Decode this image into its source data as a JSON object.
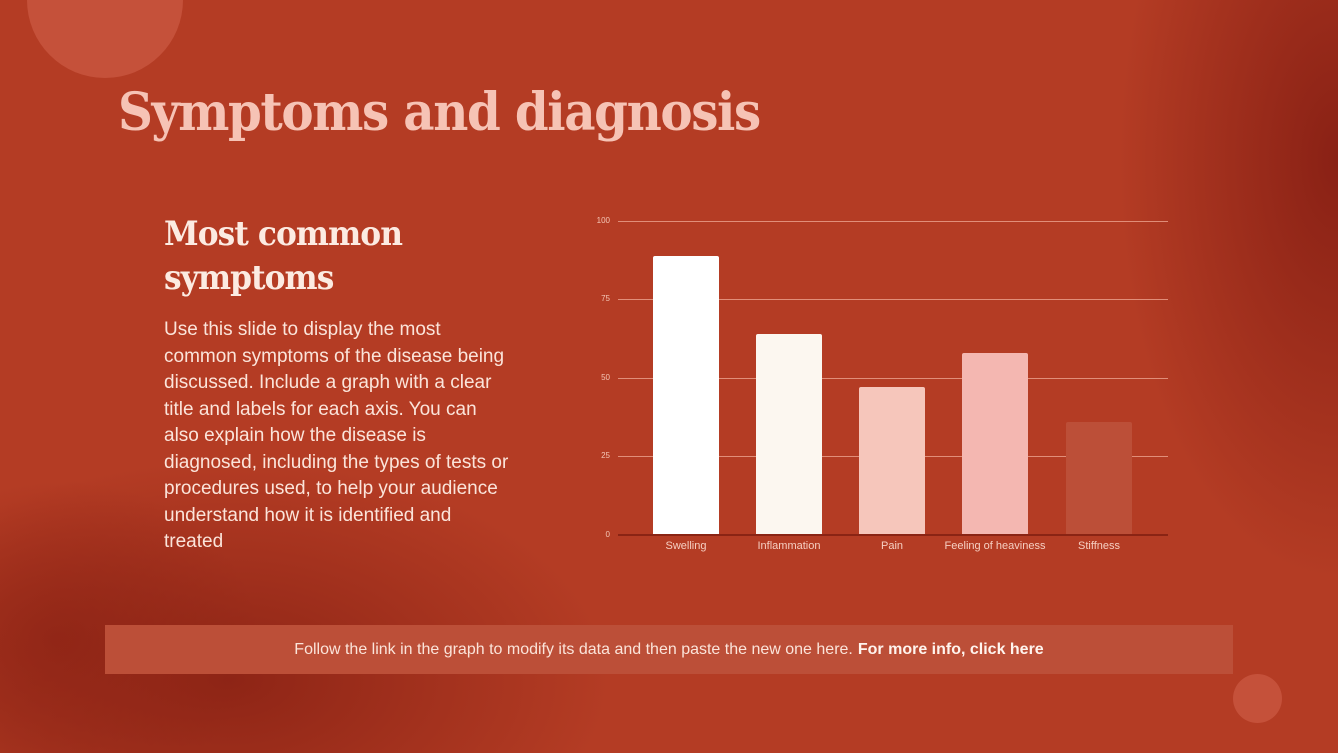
{
  "slide": {
    "title": "Symptoms and diagnosis",
    "subtitle": "Most common symptoms",
    "body": "Use this slide to display the most common symptoms of the disease being discussed. Include a graph with a clear title and labels for each axis. You can also explain how the disease is diagnosed, including the types of tests or procedures used, to help your audience understand how it is identified and treated",
    "footer": {
      "text": "Follow the link in the graph to modify its data and then paste the new one here.",
      "link_label": "For more info, click here"
    }
  },
  "colors": {
    "background": "#b43c24",
    "title": "#f6c3b5",
    "bar_colors": [
      "#ffffff",
      "#fcf7f0",
      "#f6c6bb",
      "#f4b7b1",
      "#bc4f38"
    ]
  },
  "chart_data": {
    "type": "bar",
    "title": "",
    "xlabel": "",
    "ylabel": "",
    "categories": [
      "Swelling",
      "Inflammation",
      "Pain",
      "Feeling of heaviness",
      "Stiffness"
    ],
    "values": [
      89,
      64,
      47,
      58,
      36
    ],
    "ylim": [
      0,
      100
    ],
    "yticks": [
      "0",
      "25",
      "50",
      "75",
      "100"
    ],
    "grid": true,
    "legend": null
  }
}
